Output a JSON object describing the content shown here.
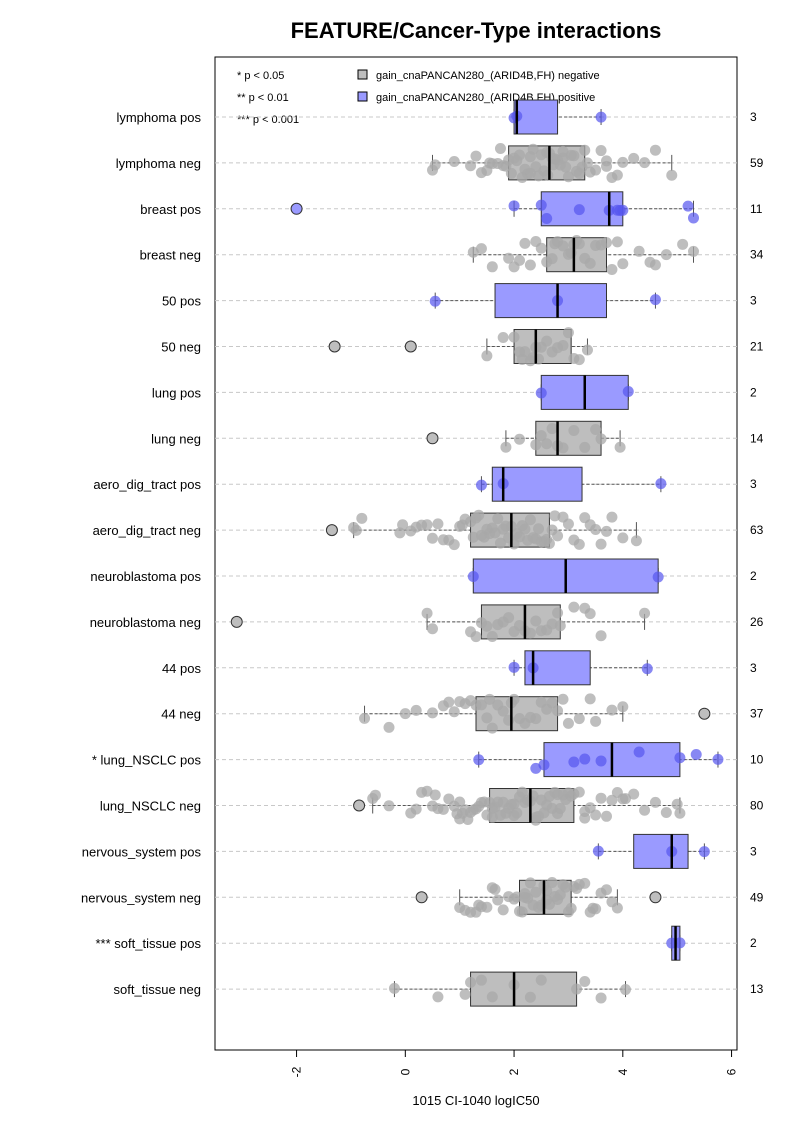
{
  "chart_data": {
    "type": "boxplot",
    "title": "FEATURE/Cancer-Type interactions",
    "xlabel": "1015 CI-1040 logIC50",
    "ylabel": "",
    "xlim": [
      -3.5,
      6.1
    ],
    "xticks": [
      "-2",
      "0",
      "2",
      "4",
      "6"
    ],
    "xtick_values": [
      -2,
      0,
      2,
      4,
      6
    ],
    "grid": "horizontal dashed",
    "legend": {
      "placement": "top",
      "significance": [
        "* p < 0.05",
        "** p < 0.01",
        "*** p < 0.001"
      ],
      "entries": [
        {
          "label": "gain_cnaPANCAN280_(ARID4B,FH) negative",
          "color": "#bebebe"
        },
        {
          "label": "gain_cnaPANCAN280_(ARID4B,FH) positive",
          "color": "#9a9aff"
        }
      ]
    },
    "colors": {
      "negative_box": "#bebebe",
      "positive_box": "#9a9aff",
      "negative_point": "#a8a8a8",
      "positive_point": "#5555ee"
    },
    "groups": [
      {
        "label": "lymphoma pos",
        "count": "3",
        "positive": true,
        "min": 2.0,
        "q1": 2.0,
        "median": 2.05,
        "q3": 2.8,
        "max": 3.6,
        "outliers": [],
        "points": [
          2.0,
          2.05,
          3.6
        ]
      },
      {
        "label": "lymphoma neg",
        "count": "59",
        "positive": false,
        "min": 0.5,
        "q1": 1.9,
        "median": 2.65,
        "q3": 3.3,
        "max": 4.9,
        "outliers": [],
        "points": [
          0.5,
          0.55,
          0.9,
          1.3,
          1.4,
          1.5,
          1.55,
          1.6,
          1.7,
          1.75,
          1.8,
          1.85,
          1.9,
          1.95,
          2.0,
          2.05,
          2.1,
          2.15,
          2.2,
          2.25,
          2.3,
          2.35,
          2.4,
          2.45,
          2.5,
          2.55,
          2.6,
          2.62,
          2.65,
          2.7,
          2.72,
          2.75,
          2.8,
          2.85,
          2.9,
          2.95,
          3.0,
          3.05,
          3.1,
          3.15,
          3.2,
          3.25,
          3.3,
          3.35,
          3.4,
          3.5,
          3.6,
          3.7,
          3.8,
          3.9,
          4.0,
          4.2,
          4.4,
          4.6,
          4.9,
          2.3,
          2.9,
          3.7,
          1.2
        ]
      },
      {
        "label": "breast pos",
        "count": "11",
        "positive": true,
        "min": 2.0,
        "q1": 2.5,
        "median": 3.75,
        "q3": 4.0,
        "max": 5.3,
        "outliers": [
          -2.0
        ],
        "points": [
          -2.0,
          2.0,
          2.5,
          2.6,
          3.2,
          3.75,
          3.9,
          3.95,
          4.0,
          5.2,
          5.3
        ]
      },
      {
        "label": "breast neg",
        "count": "34",
        "positive": false,
        "min": 1.25,
        "q1": 2.6,
        "median": 3.1,
        "q3": 3.7,
        "max": 5.3,
        "outliers": [],
        "points": [
          1.25,
          1.4,
          1.6,
          1.9,
          2.0,
          2.1,
          2.2,
          2.3,
          2.4,
          2.5,
          2.6,
          2.7,
          2.75,
          2.8,
          2.9,
          3.0,
          3.05,
          3.1,
          3.15,
          3.2,
          3.3,
          3.4,
          3.5,
          3.6,
          3.7,
          3.8,
          3.9,
          4.0,
          4.3,
          4.5,
          4.6,
          4.8,
          5.1,
          5.3
        ]
      },
      {
        "label": "50 pos",
        "count": "3",
        "positive": true,
        "min": 0.55,
        "q1": 1.65,
        "median": 2.8,
        "q3": 3.7,
        "max": 4.6,
        "outliers": [],
        "points": [
          0.55,
          2.8,
          4.6
        ]
      },
      {
        "label": "50 neg",
        "count": "21",
        "positive": false,
        "min": 1.5,
        "q1": 2.0,
        "median": 2.4,
        "q3": 3.05,
        "max": 3.35,
        "outliers": [
          -1.3,
          0.1
        ],
        "points": [
          -1.3,
          0.1,
          1.5,
          1.8,
          2.0,
          2.1,
          2.15,
          2.2,
          2.3,
          2.35,
          2.4,
          2.45,
          2.5,
          2.6,
          2.7,
          2.8,
          2.9,
          3.0,
          3.1,
          3.2,
          3.35
        ]
      },
      {
        "label": "lung pos",
        "count": "2",
        "positive": true,
        "min": 2.5,
        "q1": 2.5,
        "median": 3.3,
        "q3": 4.1,
        "max": 4.1,
        "outliers": [],
        "points": [
          2.5,
          4.1
        ]
      },
      {
        "label": "lung neg",
        "count": "14",
        "positive": false,
        "min": 1.85,
        "q1": 2.4,
        "median": 2.8,
        "q3": 3.6,
        "max": 3.95,
        "outliers": [
          0.5
        ],
        "points": [
          0.5,
          1.85,
          2.1,
          2.4,
          2.5,
          2.6,
          2.7,
          2.8,
          2.9,
          3.1,
          3.3,
          3.5,
          3.6,
          3.95
        ]
      },
      {
        "label": "aero_dig_tract pos",
        "count": "3",
        "positive": true,
        "min": 1.4,
        "q1": 1.6,
        "median": 1.8,
        "q3": 3.25,
        "max": 4.7,
        "outliers": [],
        "points": [
          1.4,
          1.8,
          4.7
        ]
      },
      {
        "label": "aero_dig_tract neg",
        "count": "63",
        "positive": false,
        "min": -0.95,
        "q1": 1.2,
        "median": 1.95,
        "q3": 2.65,
        "max": 4.25,
        "outliers": [
          -1.35
        ],
        "points": [
          -1.35,
          -0.95,
          -0.9,
          -0.8,
          -0.1,
          -0.05,
          0.1,
          0.2,
          0.3,
          0.5,
          0.6,
          0.7,
          0.8,
          0.9,
          1.0,
          1.05,
          1.1,
          1.2,
          1.25,
          1.3,
          1.35,
          1.4,
          1.45,
          1.5,
          1.55,
          1.6,
          1.65,
          1.7,
          1.75,
          1.8,
          1.85,
          1.9,
          1.95,
          2.0,
          2.05,
          2.1,
          2.15,
          2.2,
          2.25,
          2.3,
          2.35,
          2.4,
          2.45,
          2.5,
          2.55,
          2.6,
          2.65,
          2.7,
          2.8,
          2.9,
          3.0,
          3.1,
          3.2,
          3.3,
          3.4,
          3.5,
          3.6,
          3.7,
          3.8,
          4.0,
          4.25,
          0.4,
          2.75
        ]
      },
      {
        "label": "neuroblastoma pos",
        "count": "2",
        "positive": true,
        "min": 1.25,
        "q1": 1.25,
        "median": 2.95,
        "q3": 4.65,
        "max": 4.65,
        "outliers": [],
        "points": [
          1.25,
          4.65
        ]
      },
      {
        "label": "neuroblastoma neg",
        "count": "26",
        "positive": false,
        "min": 0.4,
        "q1": 1.4,
        "median": 2.2,
        "q3": 2.85,
        "max": 4.4,
        "outliers": [
          -3.1
        ],
        "points": [
          -3.1,
          0.4,
          0.5,
          1.2,
          1.3,
          1.4,
          1.5,
          1.6,
          1.7,
          1.8,
          1.9,
          2.0,
          2.1,
          2.2,
          2.3,
          2.4,
          2.5,
          2.6,
          2.7,
          2.8,
          2.85,
          3.1,
          3.3,
          3.4,
          3.6,
          4.4
        ]
      },
      {
        "label": "44 pos",
        "count": "3",
        "positive": true,
        "min": 2.0,
        "q1": 2.2,
        "median": 2.35,
        "q3": 3.4,
        "max": 4.45,
        "outliers": [],
        "points": [
          2.0,
          2.35,
          4.45
        ]
      },
      {
        "label": "44 neg",
        "count": "37",
        "positive": false,
        "min": -0.75,
        "q1": 1.3,
        "median": 1.95,
        "q3": 2.8,
        "max": 4.0,
        "outliers": [
          5.5
        ],
        "points": [
          -0.75,
          -0.3,
          0.0,
          0.2,
          0.5,
          0.7,
          0.8,
          0.9,
          1.0,
          1.1,
          1.2,
          1.3,
          1.4,
          1.5,
          1.6,
          1.7,
          1.8,
          1.9,
          1.95,
          2.0,
          2.1,
          2.2,
          2.3,
          2.4,
          2.5,
          2.6,
          2.7,
          2.8,
          2.9,
          3.0,
          3.2,
          3.4,
          3.5,
          3.8,
          4.0,
          5.5,
          1.55
        ]
      },
      {
        "label": "* lung_NSCLC pos",
        "count": "10",
        "positive": true,
        "min": 1.35,
        "q1": 2.55,
        "median": 3.8,
        "q3": 5.05,
        "max": 5.75,
        "outliers": [],
        "points": [
          1.35,
          2.4,
          2.55,
          3.1,
          3.3,
          3.6,
          4.3,
          5.05,
          5.35,
          5.75
        ]
      },
      {
        "label": "lung_NSCLC neg",
        "count": "80",
        "positive": false,
        "min": -0.6,
        "q1": 1.55,
        "median": 2.3,
        "q3": 3.1,
        "max": 5.05,
        "outliers": [
          -0.85
        ],
        "points": [
          -0.85,
          -0.6,
          -0.55,
          -0.3,
          0.1,
          0.2,
          0.3,
          0.4,
          0.5,
          0.55,
          0.6,
          0.7,
          0.8,
          0.9,
          1.0,
          1.05,
          1.1,
          1.15,
          1.2,
          1.25,
          1.3,
          1.35,
          1.4,
          1.45,
          1.5,
          1.55,
          1.6,
          1.65,
          1.7,
          1.75,
          1.8,
          1.85,
          1.9,
          1.95,
          2.0,
          2.05,
          2.1,
          2.15,
          2.2,
          2.25,
          2.3,
          2.35,
          2.4,
          2.45,
          2.5,
          2.55,
          2.6,
          2.65,
          2.7,
          2.75,
          2.8,
          2.85,
          2.9,
          2.95,
          3.0,
          3.05,
          3.1,
          3.2,
          3.3,
          3.4,
          3.5,
          3.6,
          3.7,
          3.8,
          3.9,
          4.0,
          4.2,
          4.4,
          4.6,
          4.8,
          5.0,
          5.05,
          1.0,
          1.6,
          2.0,
          2.4,
          2.8,
          3.3,
          4.05,
          0.95
        ]
      },
      {
        "label": "nervous_system pos",
        "count": "3",
        "positive": true,
        "min": 3.55,
        "q1": 4.2,
        "median": 4.9,
        "q3": 5.2,
        "max": 5.5,
        "outliers": [],
        "points": [
          3.55,
          4.9,
          5.5
        ]
      },
      {
        "label": "nervous_system neg",
        "count": "49",
        "positive": false,
        "min": 1.0,
        "q1": 2.1,
        "median": 2.55,
        "q3": 3.05,
        "max": 3.9,
        "outliers": [
          0.3,
          4.6
        ],
        "points": [
          0.3,
          1.0,
          1.1,
          1.2,
          1.3,
          1.4,
          1.5,
          1.6,
          1.7,
          1.8,
          1.9,
          2.0,
          2.05,
          2.1,
          2.15,
          2.2,
          2.25,
          2.3,
          2.35,
          2.4,
          2.45,
          2.5,
          2.55,
          2.6,
          2.65,
          2.7,
          2.75,
          2.8,
          2.85,
          2.9,
          2.95,
          3.0,
          3.05,
          3.1,
          3.2,
          3.3,
          3.4,
          3.5,
          3.6,
          3.7,
          3.8,
          3.9,
          4.6,
          1.65,
          2.2,
          2.6,
          3.15,
          3.45,
          1.35
        ]
      },
      {
        "label": "*** soft_tissue pos",
        "count": "2",
        "positive": true,
        "min": 4.9,
        "q1": 4.9,
        "median": 4.97,
        "q3": 5.05,
        "max": 5.05,
        "outliers": [],
        "points": [
          4.9,
          5.05
        ]
      },
      {
        "label": "soft_tissue neg",
        "count": "13",
        "positive": false,
        "min": -0.2,
        "q1": 1.2,
        "median": 2.0,
        "q3": 3.15,
        "max": 4.05,
        "outliers": [],
        "points": [
          -0.2,
          0.6,
          1.1,
          1.2,
          1.4,
          1.6,
          2.0,
          2.3,
          2.5,
          3.15,
          3.3,
          3.6,
          4.05
        ]
      }
    ]
  }
}
